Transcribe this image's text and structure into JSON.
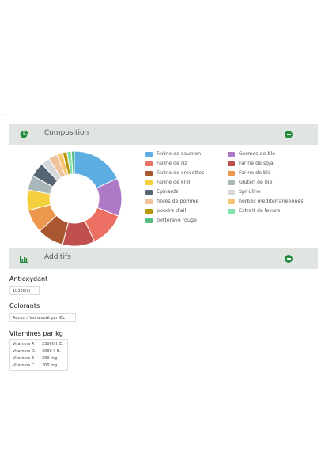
{
  "top_url": "...",
  "composition": {
    "title": "Composition",
    "header_icon": "pie-chart-icon",
    "toggle_icon": "collapse-icon",
    "legend": [
      {
        "label": "Farine de saumon",
        "color": "#5dade2"
      },
      {
        "label": "Farine de riz",
        "color": "#ec7063"
      },
      {
        "label": "Farine de crevettes",
        "color": "#a9572e"
      },
      {
        "label": "Farine de krill",
        "color": "#f4d03f"
      },
      {
        "label": "Epinards",
        "color": "#566573"
      },
      {
        "label": "fibres de pomme",
        "color": "#f0c29a"
      },
      {
        "label": "poudre d'ail",
        "color": "#b7950b"
      },
      {
        "label": "betterave rouge",
        "color": "#52be80"
      },
      {
        "label": "Germes de blé",
        "color": "#af7ac5"
      },
      {
        "label": "Farine de soja",
        "color": "#c0504d"
      },
      {
        "label": "Farine de blé",
        "color": "#eb984e"
      },
      {
        "label": "Gluten de blé",
        "color": "#aab7b8"
      },
      {
        "label": "Spiruline",
        "color": "#d5d8dc"
      },
      {
        "label": "herbes méditerranéennes",
        "color": "#f8c471"
      },
      {
        "label": "Extrait de levure",
        "color": "#82e0aa"
      }
    ]
  },
  "chart_data": {
    "type": "pie",
    "labels": [
      "Farine de saumon",
      "Germes de blé",
      "Farine de riz",
      "Farine de soja",
      "Farine de crevettes",
      "Farine de blé",
      "Farine de krill",
      "Gluten de blé",
      "Epinards",
      "Spiruline",
      "fibres de pomme",
      "herbes méditerranéennes",
      "poudre d'ail",
      "Extrait de levure",
      "betterave rouge"
    ],
    "values": [
      18,
      13,
      12,
      11,
      9,
      8,
      7,
      5,
      5,
      3,
      3,
      2,
      1.5,
      1.5,
      1
    ],
    "colors": [
      "#5dade2",
      "#af7ac5",
      "#ec7063",
      "#c0504d",
      "#a9572e",
      "#eb984e",
      "#f4d03f",
      "#aab7b8",
      "#566573",
      "#d5d8dc",
      "#f0c29a",
      "#f8c471",
      "#b7950b",
      "#82e0aa",
      "#52be80"
    ],
    "donut": true
  },
  "additifs": {
    "title": "Additifs",
    "header_icon": "bar-chart-icon",
    "toggle_icon": "collapse-icon",
    "antioxydant": {
      "title": "Antioxydant",
      "value": "1b306(ii)"
    },
    "colorants": {
      "title": "Colorants",
      "value": "Aucun n'est ajouté par JBL"
    },
    "vitamines": {
      "title": "Vitamines par kg",
      "rows": [
        {
          "name": "Vitamine A",
          "value": "25000 I. E."
        },
        {
          "name": "Vitamine D₃",
          "value": "3000 I. E."
        },
        {
          "name": "Vitamine E",
          "value": "300 mg"
        },
        {
          "name": "Vitamine C",
          "value": "200 mg"
        }
      ]
    }
  }
}
